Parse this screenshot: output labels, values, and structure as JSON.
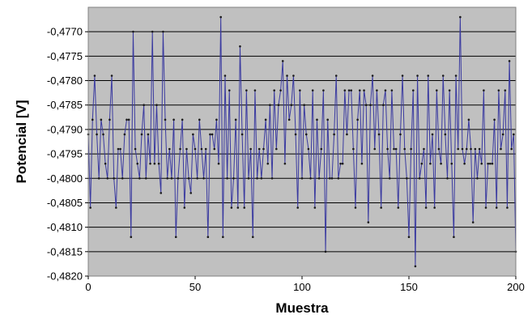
{
  "chart_data": {
    "type": "line",
    "title": "",
    "xlabel": "Muestra",
    "ylabel": "Potencial [V]",
    "xlim": [
      0,
      200
    ],
    "ylim": [
      -0.482,
      -0.4765
    ],
    "x_ticks": [
      0,
      50,
      100,
      150,
      200
    ],
    "x_tick_labels": [
      "0",
      "50",
      "100",
      "150",
      "200"
    ],
    "y_ticks": [
      -0.477,
      -0.4775,
      -0.478,
      -0.4785,
      -0.479,
      -0.4795,
      -0.48,
      -0.4805,
      -0.481,
      -0.4815,
      -0.482
    ],
    "y_tick_labels": [
      "-0,4770",
      "-0,4775",
      "-0,4780",
      "-0,4785",
      "-0,4790",
      "-0,4795",
      "-0,4800",
      "-0,4805",
      "-0,4810",
      "-0,4815",
      "-0,4820"
    ],
    "grid": "horizontal",
    "plot_background": "#c0c0c0",
    "line_color": "#3a3aa0",
    "marker_color": "#1a1a1a",
    "series": [
      {
        "values": [
          -0.4791,
          -0.4806,
          -0.4788,
          -0.4779,
          -0.4791,
          -0.48,
          -0.4788,
          -0.4791,
          -0.4797,
          -0.48,
          -0.4788,
          -0.4779,
          -0.48,
          -0.4806,
          -0.4794,
          -0.4794,
          -0.48,
          -0.4791,
          -0.4788,
          -0.4788,
          -0.4812,
          -0.477,
          -0.4794,
          -0.4797,
          -0.48,
          -0.4791,
          -0.4785,
          -0.48,
          -0.4791,
          -0.4797,
          -0.477,
          -0.4797,
          -0.4785,
          -0.4797,
          -0.4803,
          -0.477,
          -0.4788,
          -0.48,
          -0.4794,
          -0.48,
          -0.4788,
          -0.4812,
          -0.48,
          -0.4794,
          -0.4788,
          -0.4806,
          -0.4794,
          -0.48,
          -0.4803,
          -0.4791,
          -0.4794,
          -0.48,
          -0.4788,
          -0.4794,
          -0.48,
          -0.4794,
          -0.4812,
          -0.4791,
          -0.4791,
          -0.4794,
          -0.4788,
          -0.4797,
          -0.4767,
          -0.4812,
          -0.4779,
          -0.48,
          -0.4782,
          -0.4806,
          -0.48,
          -0.4788,
          -0.4806,
          -0.4773,
          -0.4791,
          -0.4806,
          -0.4782,
          -0.48,
          -0.4794,
          -0.4812,
          -0.4782,
          -0.48,
          -0.4794,
          -0.48,
          -0.4794,
          -0.4788,
          -0.4797,
          -0.4785,
          -0.48,
          -0.4782,
          -0.4794,
          -0.4785,
          -0.4782,
          -0.4776,
          -0.4797,
          -0.4779,
          -0.4788,
          -0.4785,
          -0.4779,
          -0.4791,
          -0.4806,
          -0.4782,
          -0.48,
          -0.4785,
          -0.4791,
          -0.4794,
          -0.48,
          -0.4782,
          -0.4806,
          -0.4788,
          -0.48,
          -0.4794,
          -0.4782,
          -0.4815,
          -0.4788,
          -0.48,
          -0.48,
          -0.4791,
          -0.4779,
          -0.48,
          -0.4797,
          -0.4797,
          -0.4782,
          -0.4791,
          -0.4782,
          -0.4782,
          -0.4794,
          -0.4806,
          -0.4788,
          -0.4782,
          -0.4797,
          -0.4782,
          -0.4785,
          -0.4809,
          -0.4785,
          -0.4779,
          -0.4794,
          -0.4782,
          -0.4791,
          -0.4806,
          -0.4785,
          -0.4782,
          -0.4794,
          -0.48,
          -0.4782,
          -0.4794,
          -0.4794,
          -0.4806,
          -0.4791,
          -0.4779,
          -0.4794,
          -0.48,
          -0.4812,
          -0.4794,
          -0.4782,
          -0.4818,
          -0.4779,
          -0.48,
          -0.4797,
          -0.4794,
          -0.4806,
          -0.4779,
          -0.4797,
          -0.4791,
          -0.4806,
          -0.4782,
          -0.4794,
          -0.4797,
          -0.4779,
          -0.4791,
          -0.48,
          -0.4782,
          -0.4797,
          -0.4812,
          -0.4779,
          -0.4794,
          -0.4767,
          -0.4794,
          -0.4797,
          -0.4794,
          -0.4788,
          -0.4794,
          -0.4809,
          -0.4794,
          -0.48,
          -0.4794,
          -0.4797,
          -0.4782,
          -0.4806,
          -0.4797,
          -0.4797,
          -0.4797,
          -0.4788,
          -0.4806,
          -0.4782,
          -0.4794,
          -0.4791,
          -0.4782,
          -0.4806,
          -0.4776,
          -0.4794,
          -0.4791,
          -0.4815
        ]
      }
    ]
  }
}
